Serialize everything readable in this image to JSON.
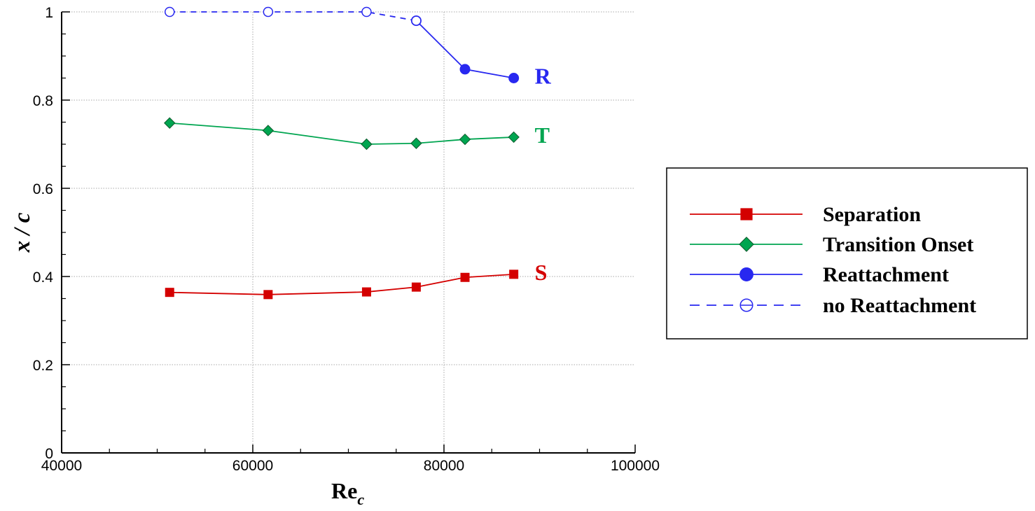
{
  "chart_data": {
    "type": "line",
    "xlabel": "Re",
    "xlabel_subscript": "c",
    "ylabel": "x / c",
    "xlim": [
      40000,
      100000
    ],
    "ylim": [
      0,
      1
    ],
    "x_ticks": [
      40000,
      60000,
      80000,
      100000
    ],
    "x_tick_labels": [
      "40000",
      "60000",
      "80000",
      "100000"
    ],
    "x_minor_step": 5000,
    "y_ticks": [
      0,
      0.2,
      0.4,
      0.6,
      0.8,
      1
    ],
    "y_tick_labels": [
      "0",
      "0.2",
      "0.4",
      "0.6",
      "0.8",
      "1"
    ],
    "y_minor_step": 0.05,
    "grid": true,
    "legend_position": "right, outside plot",
    "series": [
      {
        "name": "Separation",
        "color": "#d40000",
        "marker": "square",
        "dash": false,
        "x": [
          51300,
          61600,
          71900,
          77100,
          82200,
          87300
        ],
        "y": [
          0.364,
          0.359,
          0.365,
          0.376,
          0.398,
          0.405
        ],
        "label": "S",
        "label_at": [
          87300,
          0.405
        ]
      },
      {
        "name": "Transition Onset",
        "color": "#00a550",
        "marker": "diamond",
        "dash": false,
        "x": [
          51300,
          61600,
          71900,
          77100,
          82200,
          87300
        ],
        "y": [
          0.748,
          0.731,
          0.7,
          0.702,
          0.711,
          0.716
        ],
        "label": "T",
        "label_at": [
          87300,
          0.716
        ]
      },
      {
        "name": "Reattachment",
        "color": "#2828f0",
        "marker": "circle",
        "dash": false,
        "x": [
          77100,
          82200,
          87300
        ],
        "y": [
          0.98,
          0.87,
          0.85
        ],
        "label": "R",
        "label_at": [
          87300,
          0.85
        ]
      },
      {
        "name": "no Reattachment",
        "color": "#2828f0",
        "marker": "circle-open",
        "dash": true,
        "x": [
          51300,
          61600,
          71900,
          77100
        ],
        "y": [
          1.0,
          1.0,
          1.0,
          0.98
        ]
      }
    ]
  }
}
